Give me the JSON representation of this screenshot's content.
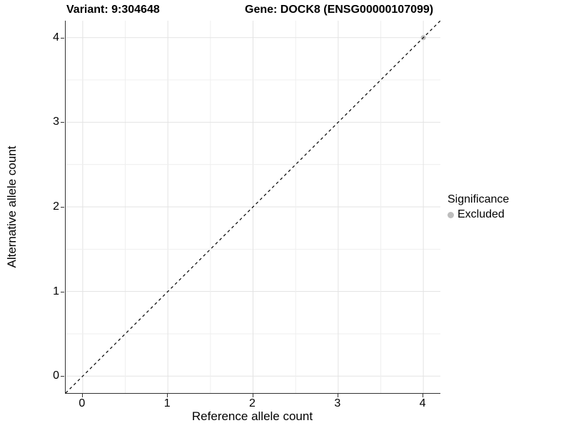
{
  "header": {
    "variant_title": "Variant: 9:304648",
    "gene_title": "Gene: DOCK8 (ENSG00000107099)"
  },
  "chart_data": {
    "type": "scatter",
    "xlabel": "Reference allele count",
    "ylabel": "Alternative allele count",
    "xlim": [
      -0.2,
      4.2
    ],
    "ylim": [
      -0.2,
      4.2
    ],
    "x_ticks": [
      0,
      1,
      2,
      3,
      4
    ],
    "y_ticks": [
      0,
      1,
      2,
      3,
      4
    ],
    "grid": true,
    "grid_step": 0.5,
    "identity_line": {
      "style": "dashed",
      "from": -0.2,
      "to": 4.2
    },
    "series": [
      {
        "name": "Excluded",
        "points": [
          {
            "x": 4,
            "y": 4
          }
        ]
      }
    ],
    "legend": {
      "title": "Significance",
      "position": "right",
      "entries": [
        {
          "label": "Excluded",
          "color": "#bdbdbd"
        }
      ]
    }
  },
  "colors": {
    "point": "#bdbdbd",
    "grid_major": "#e3e3e3",
    "grid_minor": "#efefef",
    "axis": "#333333",
    "identity_line": "#000000",
    "background": "#ffffff"
  }
}
